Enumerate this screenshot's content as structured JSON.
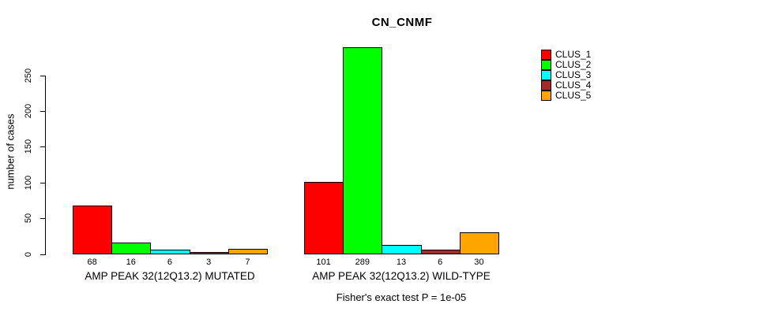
{
  "chart_data": {
    "type": "bar",
    "title": "CN_CNMF",
    "ylabel": "number of cases",
    "xlabel": "",
    "yticks": [
      0,
      50,
      100,
      150,
      200,
      250
    ],
    "ylim": [
      0,
      290
    ],
    "grid": false,
    "legend_position": "right",
    "categories": [
      "AMP PEAK 32(12Q13.2) MUTATED",
      "AMP PEAK 32(12Q13.2) WILD-TYPE"
    ],
    "series": [
      {
        "name": "CLUS_1",
        "color": "#FF0000",
        "values": [
          68,
          101
        ]
      },
      {
        "name": "CLUS_2",
        "color": "#00FF00",
        "values": [
          16,
          289
        ]
      },
      {
        "name": "CLUS_3",
        "color": "#00FFFF",
        "values": [
          6,
          13
        ]
      },
      {
        "name": "CLUS_4",
        "color": "#A52A2A",
        "values": [
          3,
          6
        ]
      },
      {
        "name": "CLUS_5",
        "color": "#FFA500",
        "values": [
          7,
          30
        ]
      }
    ],
    "bar_value_labels": [
      [
        "68",
        "16",
        "6",
        "3",
        "7"
      ],
      [
        "101",
        "289",
        "13",
        "6",
        "30"
      ]
    ],
    "annotation": "Fisher's exact test P = 1e-05"
  }
}
